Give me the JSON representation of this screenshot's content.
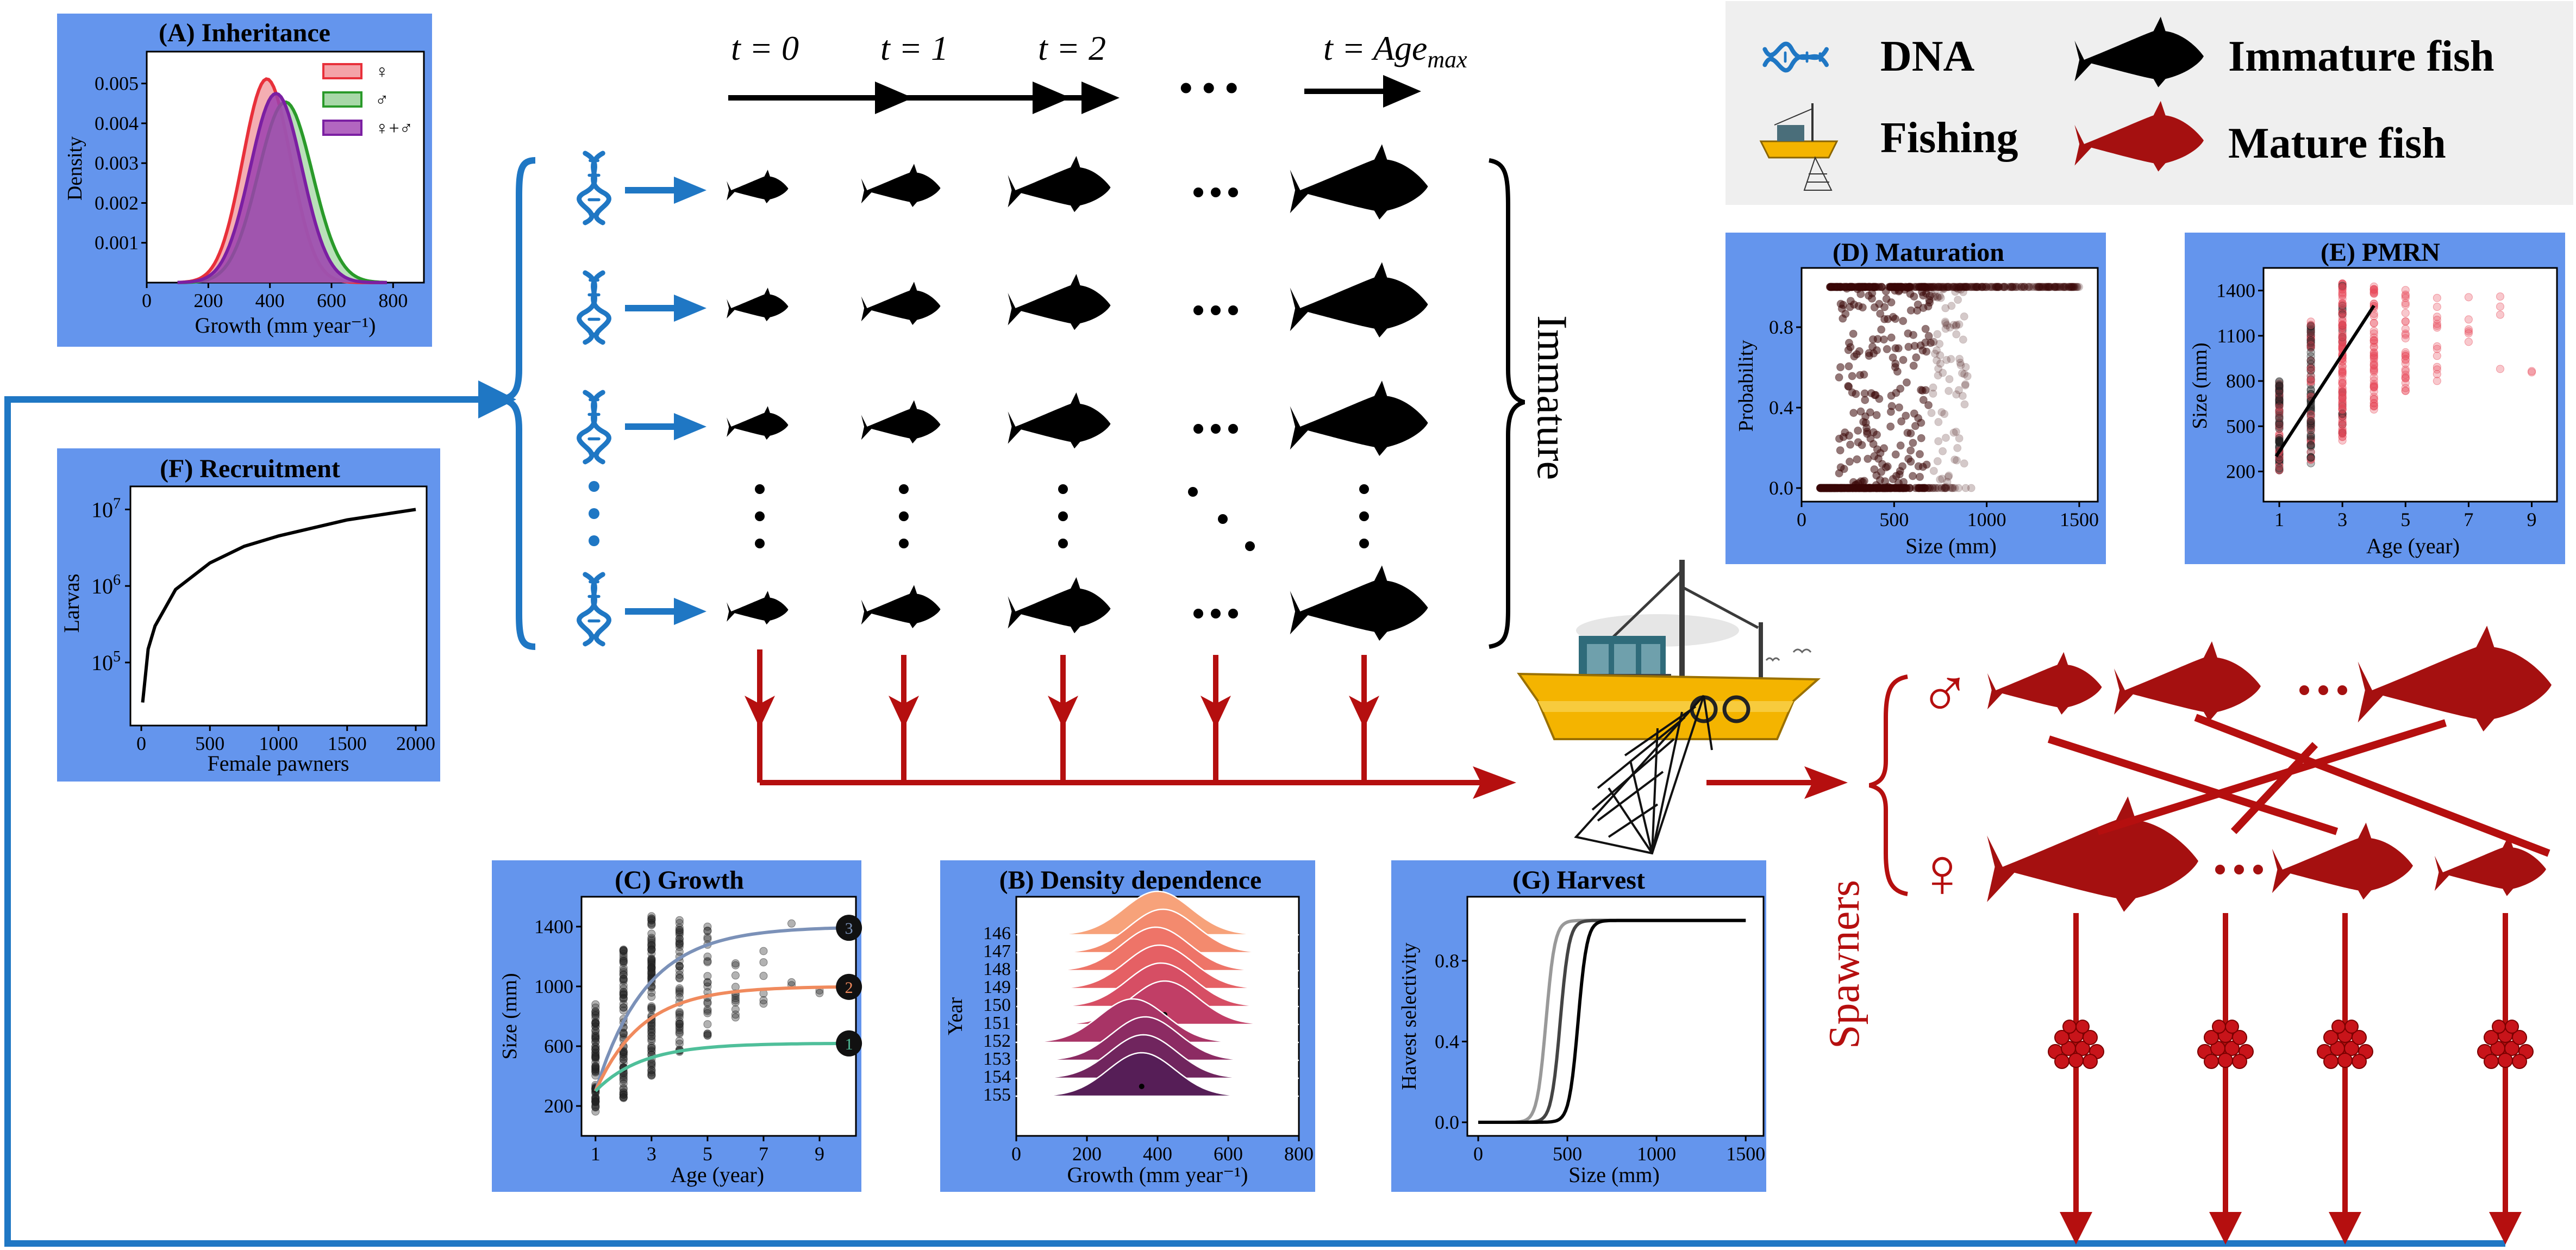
{
  "colors": {
    "panel_bg": "#6495ED",
    "legend_bg": "#EFEFEF",
    "blue": "#1F77C4",
    "red": "#B50F0F",
    "dark_red": "#A51010",
    "black": "#000000"
  },
  "legend": {
    "dna_label": "DNA",
    "immature_label": "Immature fish",
    "fishing_label": "Fishing",
    "mature_label": "Mature fish",
    "dna_icon": "dna-helix-icon",
    "fishing_icon": "fishing-boat-icon",
    "immature_icon": "black-fish-icon",
    "mature_icon": "red-fish-icon"
  },
  "timeline": {
    "t0": "t = 0",
    "t1": "t = 1",
    "t2": "t = 2",
    "tmax_prefix": "t = Age",
    "tmax_sub": "max",
    "ellipsis": "• • •"
  },
  "labels": {
    "immature": "Immature",
    "spawners": "Spawners",
    "male_symbol": "♂",
    "female_symbol": "♀"
  },
  "panels": {
    "A": {
      "title": "(A) Inheritance",
      "ylabel": "Density",
      "xlabel": "Growth (mm year⁻¹)",
      "xticks": [
        "0",
        "200",
        "400",
        "600",
        "800"
      ],
      "yticks": [
        "0.001",
        "0.002",
        "0.003",
        "0.004",
        "0.005"
      ],
      "legend": [
        "♀",
        "♂",
        "♀+♂"
      ]
    },
    "F": {
      "title": "(F) Recruitment",
      "ylabel": "Larvas",
      "xlabel": "Female pawners",
      "xticks": [
        "0",
        "500",
        "1000",
        "1500",
        "2000"
      ],
      "ytick_base": [
        "10",
        "10",
        "10"
      ],
      "ytick_exp": [
        "5",
        "6",
        "7"
      ]
    },
    "D": {
      "title": "(D) Maturation",
      "ylabel": "Probability",
      "xlabel": "Size (mm)",
      "xticks": [
        "0",
        "500",
        "1000",
        "1500"
      ],
      "yticks": [
        "0.0",
        "0.4",
        "0.8"
      ]
    },
    "E": {
      "title": "(E) PMRN",
      "ylabel": "Size (mm)",
      "xlabel": "Age (year)",
      "xticks": [
        "1",
        "3",
        "5",
        "7",
        "9"
      ],
      "yticks": [
        "200",
        "500",
        "800",
        "1100",
        "1400"
      ]
    },
    "C": {
      "title": "(C) Growth",
      "ylabel": "Size (mm)",
      "xlabel": "Age (year)",
      "xticks": [
        "1",
        "3",
        "5",
        "7",
        "9"
      ],
      "yticks": [
        "200",
        "600",
        "1000",
        "1400"
      ],
      "curve_labels": [
        "3",
        "2",
        "1"
      ]
    },
    "B": {
      "title": "(B) Density dependence",
      "ylabel": "Year",
      "xlabel": "Growth (mm year⁻¹)",
      "xticks": [
        "0",
        "200",
        "400",
        "600",
        "800"
      ],
      "years": [
        "146",
        "147",
        "148",
        "149",
        "150",
        "151",
        "152",
        "153",
        "154",
        "155"
      ]
    },
    "G": {
      "title": "(G) Harvest",
      "ylabel": "Havest selectivity",
      "xlabel": "Size (mm)",
      "xticks": [
        "0",
        "500",
        "1000",
        "1500"
      ],
      "yticks": [
        "0.0",
        "0.4",
        "0.8"
      ]
    }
  },
  "chart_data": [
    {
      "type": "area",
      "title": "(A) Inheritance",
      "xlabel": "Growth (mm year⁻¹)",
      "ylabel": "Density",
      "xlim": [
        0,
        900
      ],
      "ylim": [
        0,
        0.0058
      ],
      "series": [
        {
          "name": "♀",
          "color": "#E8303A",
          "mean": 390,
          "sd": 78
        },
        {
          "name": "♂",
          "color": "#2A9A2A",
          "mean": 450,
          "sd": 88
        },
        {
          "name": "♀+♂",
          "color": "#7B1FA2",
          "mean": 420,
          "sd": 84
        }
      ]
    },
    {
      "type": "line",
      "title": "(F) Recruitment",
      "xlabel": "Female pawners",
      "ylabel": "Larvas",
      "xlim": [
        0,
        2000
      ],
      "log_y": true,
      "x": [
        10,
        50,
        100,
        250,
        500,
        750,
        1000,
        1500,
        2000
      ],
      "y": [
        30000,
        150000,
        300000,
        900000,
        2000000,
        3300000,
        4500000,
        7300000,
        10000000
      ]
    },
    {
      "type": "scatter",
      "title": "(D) Maturation",
      "xlabel": "Size (mm)",
      "ylabel": "Probability",
      "xlim": [
        0,
        1600
      ],
      "ylim": [
        0,
        1
      ]
    },
    {
      "type": "scatter",
      "title": "(E) PMRN",
      "xlabel": "Age (year)",
      "ylabel": "Size (mm)",
      "xlim": [
        0.5,
        9.8
      ],
      "ylim": [
        0,
        1550
      ],
      "line": {
        "x": [
          0.9,
          4
        ],
        "y": [
          300,
          1300
        ]
      }
    },
    {
      "type": "line",
      "title": "(C) Growth",
      "xlabel": "Age (year)",
      "ylabel": "Size (mm)",
      "xlim": [
        0.5,
        10.3
      ],
      "ylim": [
        0,
        1600
      ],
      "series": [
        {
          "name": "3",
          "color": "#7B91B8",
          "Linf": 1400,
          "k": 0.55
        },
        {
          "name": "2",
          "color": "#F08A5D",
          "Linf": 1000,
          "k": 0.6
        },
        {
          "name": "1",
          "color": "#4FBF9A",
          "Linf": 620,
          "k": 0.6
        }
      ]
    },
    {
      "type": "area",
      "title": "(B) Density dependence",
      "xlabel": "Growth (mm year⁻¹)",
      "ylabel": "Year",
      "xlim": [
        0,
        800
      ],
      "categories": [
        "146",
        "147",
        "148",
        "149",
        "150",
        "151",
        "152",
        "153",
        "154",
        "155"
      ],
      "means": [
        400,
        415,
        395,
        405,
        410,
        420,
        330,
        365,
        360,
        355
      ]
    },
    {
      "type": "line",
      "title": "(G) Harvest",
      "xlabel": "Size (mm)",
      "ylabel": "Havest selectivity",
      "xlim": [
        0,
        1600
      ],
      "ylim": [
        0,
        1.05
      ],
      "series": [
        {
          "color": "#999999",
          "midpoint": 380
        },
        {
          "color": "#444444",
          "midpoint": 460
        },
        {
          "color": "#000000",
          "midpoint": 560
        }
      ]
    }
  ]
}
